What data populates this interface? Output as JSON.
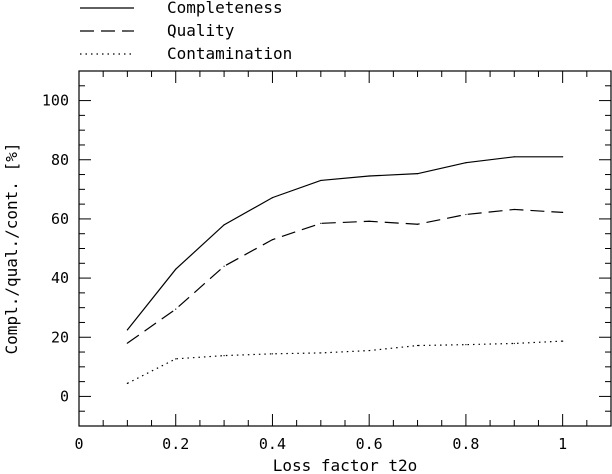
{
  "chart_data": {
    "type": "line",
    "xlabel": "Loss factor t2o",
    "ylabel": "Compl./qual./cont. [%]",
    "xlim": [
      0,
      1.1
    ],
    "ylim": [
      -10,
      110
    ],
    "x_ticks": [
      0,
      0.2,
      0.4,
      0.6,
      0.8,
      1
    ],
    "x_tick_labels": [
      "0",
      "0.2",
      "0.4",
      "0.6",
      "0.8",
      "1"
    ],
    "y_ticks": [
      0,
      20,
      40,
      60,
      80,
      100
    ],
    "y_tick_labels": [
      "0",
      "20",
      "40",
      "60",
      "80",
      "100"
    ],
    "legend_position": "top-left, above plot",
    "grid": false,
    "x": [
      0.1,
      0.2,
      0.3,
      0.4,
      0.5,
      0.6,
      0.7,
      0.8,
      0.9,
      1.0
    ],
    "series": [
      {
        "name": "Completeness",
        "style": "solid",
        "values": [
          22.5,
          43,
          58,
          67.2,
          73,
          74.5,
          75.3,
          79,
          81,
          81
        ]
      },
      {
        "name": "Quality",
        "style": "dashed",
        "values": [
          18,
          29.5,
          44,
          53,
          58.5,
          59.2,
          58.2,
          61.5,
          63.2,
          62.2
        ]
      },
      {
        "name": "Contamination",
        "style": "dotted",
        "values": [
          4.4,
          12.7,
          13.8,
          14.4,
          14.7,
          15.5,
          17.2,
          17.5,
          17.9,
          18.7
        ]
      }
    ]
  }
}
